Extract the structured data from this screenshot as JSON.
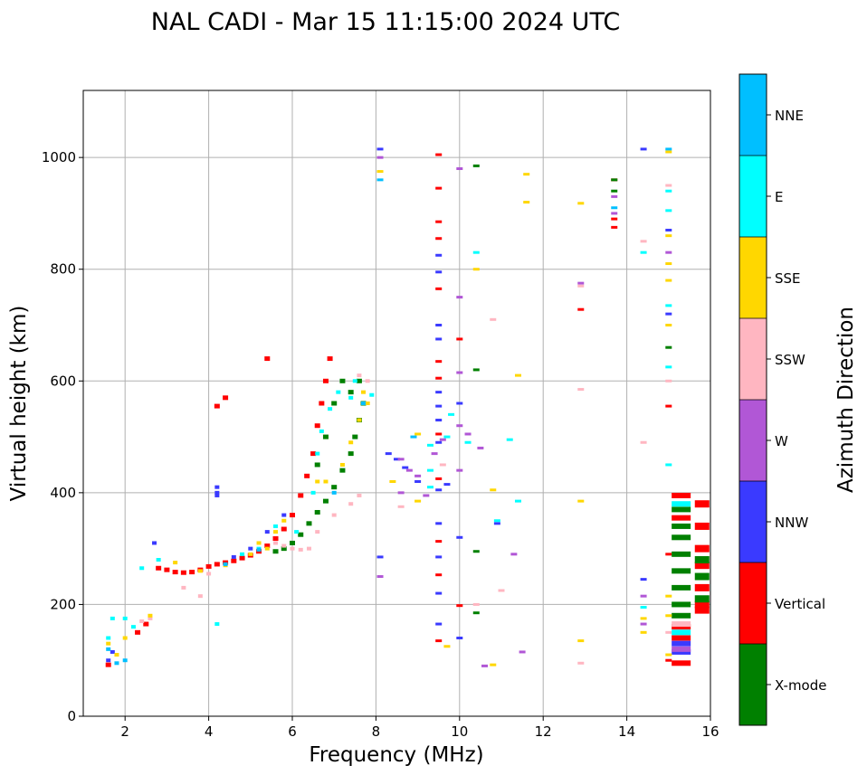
{
  "chart_data": {
    "type": "scatter",
    "title": "NAL CADI - Mar 15 11:15:00 2024 UTC",
    "xlabel": "Frequency (MHz)",
    "ylabel": "Virtual height (km)",
    "xlim": [
      1,
      16
    ],
    "ylim": [
      0,
      1120
    ],
    "xticks": [
      2,
      4,
      6,
      8,
      10,
      12,
      14,
      16
    ],
    "yticks": [
      0,
      200,
      400,
      600,
      800,
      1000
    ],
    "grid": true,
    "colorbar": {
      "label": "Azimuth Direction",
      "position": "right",
      "categories": [
        {
          "name": "X-mode",
          "color": "#008000"
        },
        {
          "name": "Vertical",
          "color": "#ff0000"
        },
        {
          "name": "NNW",
          "color": "#3a3aff"
        },
        {
          "name": "W",
          "color": "#b157d6"
        },
        {
          "name": "SSW",
          "color": "#ffb6c1"
        },
        {
          "name": "SSE",
          "color": "#ffd700"
        },
        {
          "name": "E",
          "color": "#00ffff"
        },
        {
          "name": "NNE",
          "color": "#00bfff"
        }
      ]
    },
    "series": [
      {
        "name": "Vertical",
        "color": "#ff0000",
        "points": [
          [
            2.8,
            265
          ],
          [
            3.0,
            262
          ],
          [
            3.2,
            258
          ],
          [
            3.4,
            257
          ],
          [
            3.6,
            258
          ],
          [
            3.8,
            262
          ],
          [
            4.0,
            268
          ],
          [
            4.2,
            272
          ],
          [
            4.4,
            275
          ],
          [
            4.6,
            278
          ],
          [
            4.8,
            283
          ],
          [
            5.0,
            288
          ],
          [
            5.2,
            295
          ],
          [
            5.4,
            305
          ],
          [
            5.6,
            318
          ],
          [
            5.8,
            335
          ],
          [
            6.0,
            360
          ],
          [
            6.2,
            395
          ],
          [
            6.35,
            430
          ],
          [
            6.5,
            470
          ],
          [
            6.6,
            520
          ],
          [
            6.7,
            560
          ],
          [
            6.8,
            600
          ],
          [
            6.9,
            640
          ],
          [
            4.2,
            555
          ],
          [
            4.4,
            570
          ],
          [
            5.4,
            640
          ],
          [
            1.6,
            92
          ],
          [
            2.3,
            150
          ],
          [
            2.5,
            165
          ],
          [
            9.5,
            1005
          ],
          [
            9.5,
            945
          ],
          [
            9.5,
            885
          ],
          [
            9.5,
            855
          ],
          [
            9.5,
            765
          ],
          [
            9.5,
            635
          ],
          [
            9.5,
            605
          ],
          [
            9.5,
            505
          ],
          [
            9.5,
            425
          ],
          [
            9.5,
            313
          ],
          [
            9.5,
            253
          ],
          [
            9.5,
            135
          ],
          [
            10.0,
            675
          ],
          [
            10.0,
            198
          ],
          [
            13.7,
            875
          ],
          [
            13.7,
            890
          ],
          [
            13.7,
            960
          ],
          [
            12.9,
            728
          ],
          [
            15.0,
            555
          ],
          [
            15.0,
            290
          ],
          [
            15.0,
            100
          ],
          [
            15.3,
            395
          ],
          [
            15.3,
            355
          ],
          [
            15.3,
            160
          ],
          [
            15.3,
            140
          ],
          [
            15.3,
            95
          ],
          [
            15.8,
            380
          ],
          [
            15.8,
            340
          ],
          [
            15.8,
            300
          ],
          [
            15.8,
            270
          ],
          [
            15.8,
            230
          ],
          [
            15.8,
            200
          ],
          [
            15.8,
            190
          ]
        ]
      },
      {
        "name": "X-mode",
        "color": "#008000",
        "points": [
          [
            5.6,
            295
          ],
          [
            5.8,
            300
          ],
          [
            6.0,
            310
          ],
          [
            6.2,
            325
          ],
          [
            6.4,
            345
          ],
          [
            6.6,
            365
          ],
          [
            6.8,
            385
          ],
          [
            7.0,
            410
          ],
          [
            7.2,
            440
          ],
          [
            7.4,
            470
          ],
          [
            7.5,
            500
          ],
          [
            7.6,
            530
          ],
          [
            7.7,
            560
          ],
          [
            7.2,
            600
          ],
          [
            7.0,
            560
          ],
          [
            6.8,
            500
          ],
          [
            6.6,
            450
          ],
          [
            7.4,
            580
          ],
          [
            7.6,
            600
          ],
          [
            15.3,
            370
          ],
          [
            15.3,
            340
          ],
          [
            15.3,
            320
          ],
          [
            15.3,
            290
          ],
          [
            15.3,
            260
          ],
          [
            15.3,
            230
          ],
          [
            15.3,
            200
          ],
          [
            15.3,
            180
          ],
          [
            15.8,
            280
          ],
          [
            15.8,
            250
          ],
          [
            15.8,
            210
          ],
          [
            15.0,
            660
          ],
          [
            13.7,
            940
          ],
          [
            13.7,
            960
          ],
          [
            10.4,
            985
          ],
          [
            10.4,
            620
          ],
          [
            10.4,
            295
          ],
          [
            10.4,
            185
          ]
        ]
      },
      {
        "name": "NNW",
        "color": "#3a3aff",
        "points": [
          [
            1.6,
            100
          ],
          [
            1.7,
            115
          ],
          [
            2.7,
            310
          ],
          [
            4.2,
            400
          ],
          [
            4.2,
            410
          ],
          [
            4.2,
            395
          ],
          [
            4.6,
            285
          ],
          [
            5.0,
            300
          ],
          [
            5.4,
            330
          ],
          [
            5.8,
            360
          ],
          [
            8.1,
            1015
          ],
          [
            8.1,
            285
          ],
          [
            8.3,
            470
          ],
          [
            8.5,
            460
          ],
          [
            8.7,
            445
          ],
          [
            9.0,
            420
          ],
          [
            9.5,
            825
          ],
          [
            9.5,
            795
          ],
          [
            9.5,
            700
          ],
          [
            9.5,
            675
          ],
          [
            9.5,
            580
          ],
          [
            9.5,
            555
          ],
          [
            9.5,
            530
          ],
          [
            9.5,
            490
          ],
          [
            9.5,
            405
          ],
          [
            9.5,
            345
          ],
          [
            9.5,
            285
          ],
          [
            9.5,
            220
          ],
          [
            9.5,
            165
          ],
          [
            9.7,
            415
          ],
          [
            10.0,
            560
          ],
          [
            10.0,
            320
          ],
          [
            10.0,
            140
          ],
          [
            10.9,
            345
          ],
          [
            14.4,
            1015
          ],
          [
            14.4,
            245
          ],
          [
            15.0,
            870
          ],
          [
            15.0,
            720
          ],
          [
            15.3,
            130
          ],
          [
            15.3,
            115
          ]
        ]
      },
      {
        "name": "W",
        "color": "#b157d6",
        "points": [
          [
            8.1,
            1000
          ],
          [
            8.1,
            250
          ],
          [
            8.6,
            460
          ],
          [
            8.8,
            440
          ],
          [
            9.0,
            430
          ],
          [
            9.2,
            395
          ],
          [
            8.6,
            400
          ],
          [
            9.4,
            470
          ],
          [
            9.6,
            495
          ],
          [
            10.0,
            980
          ],
          [
            10.0,
            750
          ],
          [
            10.0,
            615
          ],
          [
            10.0,
            520
          ],
          [
            10.0,
            440
          ],
          [
            10.2,
            505
          ],
          [
            10.5,
            480
          ],
          [
            11.3,
            290
          ],
          [
            11.5,
            115
          ],
          [
            10.6,
            90
          ],
          [
            12.9,
            775
          ],
          [
            13.7,
            900
          ],
          [
            13.7,
            930
          ],
          [
            14.4,
            215
          ],
          [
            14.4,
            165
          ],
          [
            15.0,
            830
          ],
          [
            15.3,
            120
          ]
        ]
      },
      {
        "name": "SSW",
        "color": "#ffb6c1",
        "points": [
          [
            2.4,
            170
          ],
          [
            2.6,
            175
          ],
          [
            3.4,
            230
          ],
          [
            3.8,
            215
          ],
          [
            4.0,
            255
          ],
          [
            5.6,
            310
          ],
          [
            5.8,
            305
          ],
          [
            6.0,
            300
          ],
          [
            6.2,
            298
          ],
          [
            6.4,
            300
          ],
          [
            6.6,
            330
          ],
          [
            7.0,
            360
          ],
          [
            7.4,
            380
          ],
          [
            7.6,
            395
          ],
          [
            7.8,
            600
          ],
          [
            7.6,
            610
          ],
          [
            8.6,
            375
          ],
          [
            9.6,
            450
          ],
          [
            10.8,
            710
          ],
          [
            11.0,
            225
          ],
          [
            10.4,
            200
          ],
          [
            12.9,
            585
          ],
          [
            12.9,
            770
          ],
          [
            12.9,
            95
          ],
          [
            14.4,
            490
          ],
          [
            14.4,
            850
          ],
          [
            15.0,
            950
          ],
          [
            15.0,
            600
          ],
          [
            15.0,
            150
          ],
          [
            15.3,
            165
          ]
        ]
      },
      {
        "name": "SSE",
        "color": "#ffd700",
        "points": [
          [
            1.6,
            130
          ],
          [
            1.8,
            110
          ],
          [
            2.0,
            140
          ],
          [
            2.6,
            180
          ],
          [
            3.2,
            275
          ],
          [
            3.8,
            260
          ],
          [
            4.4,
            270
          ],
          [
            5.0,
            290
          ],
          [
            5.2,
            310
          ],
          [
            5.4,
            300
          ],
          [
            5.6,
            330
          ],
          [
            5.8,
            350
          ],
          [
            6.6,
            420
          ],
          [
            6.8,
            420
          ],
          [
            7.2,
            450
          ],
          [
            7.4,
            490
          ],
          [
            7.6,
            530
          ],
          [
            7.8,
            560
          ],
          [
            7.7,
            580
          ],
          [
            8.1,
            975
          ],
          [
            8.4,
            420
          ],
          [
            9.0,
            385
          ],
          [
            9.0,
            505
          ],
          [
            9.7,
            125
          ],
          [
            10.4,
            800
          ],
          [
            10.8,
            405
          ],
          [
            11.4,
            610
          ],
          [
            11.6,
            970
          ],
          [
            11.6,
            920
          ],
          [
            10.8,
            92
          ],
          [
            12.9,
            918
          ],
          [
            12.9,
            385
          ],
          [
            12.9,
            135
          ],
          [
            14.4,
            150
          ],
          [
            14.4,
            175
          ],
          [
            15.0,
            1010
          ],
          [
            15.0,
            860
          ],
          [
            15.0,
            810
          ],
          [
            15.0,
            780
          ],
          [
            15.0,
            700
          ],
          [
            15.0,
            215
          ],
          [
            15.0,
            180
          ],
          [
            15.0,
            110
          ]
        ]
      },
      {
        "name": "E",
        "color": "#00ffff",
        "points": [
          [
            1.6,
            140
          ],
          [
            1.7,
            175
          ],
          [
            2.0,
            175
          ],
          [
            2.2,
            160
          ],
          [
            2.4,
            265
          ],
          [
            2.8,
            280
          ],
          [
            4.2,
            165
          ],
          [
            4.8,
            290
          ],
          [
            5.2,
            300
          ],
          [
            5.6,
            340
          ],
          [
            6.1,
            330
          ],
          [
            6.5,
            400
          ],
          [
            6.6,
            470
          ],
          [
            6.7,
            510
          ],
          [
            6.9,
            550
          ],
          [
            7.1,
            580
          ],
          [
            7.4,
            570
          ],
          [
            7.5,
            600
          ],
          [
            7.9,
            575
          ],
          [
            9.3,
            485
          ],
          [
            9.3,
            440
          ],
          [
            9.3,
            410
          ],
          [
            9.7,
            500
          ],
          [
            9.8,
            540
          ],
          [
            10.2,
            490
          ],
          [
            10.4,
            830
          ],
          [
            10.9,
            350
          ],
          [
            11.2,
            495
          ],
          [
            11.4,
            385
          ],
          [
            14.4,
            830
          ],
          [
            14.4,
            195
          ],
          [
            15.0,
            940
          ],
          [
            15.0,
            905
          ],
          [
            15.0,
            735
          ],
          [
            15.0,
            625
          ],
          [
            15.0,
            450
          ],
          [
            15.3,
            380
          ],
          [
            15.3,
            150
          ]
        ]
      },
      {
        "name": "NNE",
        "color": "#00bfff",
        "points": [
          [
            1.6,
            120
          ],
          [
            1.8,
            95
          ],
          [
            2.0,
            100
          ],
          [
            4.4,
            272
          ],
          [
            5.2,
            298
          ],
          [
            7.0,
            400
          ],
          [
            7.7,
            560
          ],
          [
            8.1,
            960
          ],
          [
            8.9,
            500
          ],
          [
            13.7,
            910
          ],
          [
            15.0,
            1015
          ]
        ]
      }
    ]
  }
}
